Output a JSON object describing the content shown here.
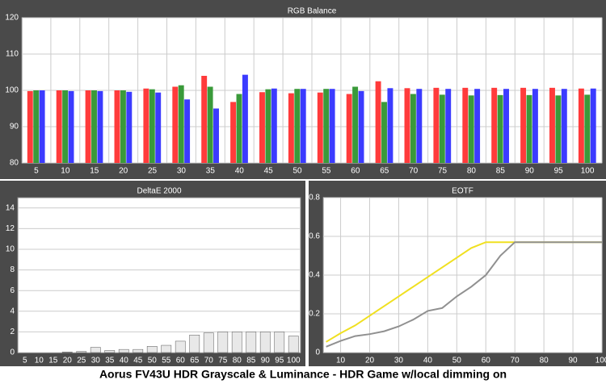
{
  "title": "Aorus FV43U HDR Grayscale & Luminance - HDR Game w/local dimming on",
  "chart_data": [
    {
      "type": "bar",
      "title": "RGB Balance",
      "categories": [
        "5",
        "10",
        "15",
        "20",
        "25",
        "30",
        "35",
        "40",
        "45",
        "50",
        "55",
        "60",
        "65",
        "70",
        "75",
        "80",
        "85",
        "90",
        "95",
        "100"
      ],
      "series": [
        {
          "color": "#ff3b3b",
          "values": [
            99.8,
            100,
            100,
            100,
            100.5,
            101,
            104,
            96.8,
            99.5,
            99.2,
            99.4,
            99,
            102.5,
            100.6,
            100.7,
            100.7,
            100.7,
            100.7,
            100.7,
            100.5
          ]
        },
        {
          "color": "#3a9a3a",
          "values": [
            100,
            100,
            100,
            100,
            100.3,
            101.4,
            101,
            99,
            100.3,
            100.4,
            100.4,
            101,
            96.8,
            99,
            98.8,
            98.6,
            98.7,
            98.7,
            98.6,
            98.8
          ]
        },
        {
          "color": "#3b3bff",
          "values": [
            100,
            99.8,
            99.8,
            99.6,
            99.4,
            97.5,
            95,
            104.3,
            100.5,
            100.4,
            100.4,
            99.8,
            100.6,
            100.4,
            100.4,
            100.4,
            100.4,
            100.4,
            100.4,
            100.5
          ]
        }
      ],
      "ylim": [
        80,
        120
      ],
      "yticks": [
        80,
        90,
        100,
        110,
        120
      ],
      "grid": true
    },
    {
      "type": "bar",
      "title": "DeltaE 2000",
      "categories": [
        "5",
        "10",
        "15",
        "20",
        "25",
        "30",
        "35",
        "40",
        "45",
        "50",
        "55",
        "60",
        "65",
        "70",
        "75",
        "80",
        "85",
        "90",
        "95",
        "100"
      ],
      "values": [
        0,
        0,
        0,
        0.05,
        0.1,
        0.5,
        0.2,
        0.3,
        0.3,
        0.6,
        0.7,
        1.1,
        1.7,
        1.9,
        2.0,
        2.0,
        2.0,
        2.0,
        2.0,
        1.6
      ],
      "color": "#e8e8e8",
      "ylim": [
        0,
        15
      ],
      "yticks": [
        0,
        2,
        4,
        6,
        8,
        10,
        12,
        14
      ],
      "grid": true
    },
    {
      "type": "line",
      "title": "EOTF",
      "x": [
        5,
        10,
        15,
        20,
        25,
        30,
        35,
        40,
        45,
        50,
        55,
        60,
        65,
        70,
        75,
        80,
        85,
        90,
        95,
        100
      ],
      "series": [
        {
          "color": "#f0e020",
          "values": [
            0.055,
            0.1,
            0.14,
            0.19,
            0.24,
            0.29,
            0.34,
            0.39,
            0.44,
            0.49,
            0.54,
            0.57,
            0.57,
            0.57,
            0.57,
            0.57,
            0.57,
            0.57,
            0.57,
            0.57
          ]
        },
        {
          "color": "#909090",
          "values": [
            0.03,
            0.06,
            0.085,
            0.095,
            0.11,
            0.135,
            0.17,
            0.215,
            0.23,
            0.29,
            0.34,
            0.4,
            0.5,
            0.57,
            0.57,
            0.57,
            0.57,
            0.57,
            0.57,
            0.57
          ]
        }
      ],
      "xlim": [
        4,
        100
      ],
      "xticks": [
        10,
        20,
        30,
        40,
        50,
        60,
        70,
        80,
        90,
        100
      ],
      "ylim": [
        0,
        0.8
      ],
      "yticks": [
        0,
        0.2,
        0.4,
        0.6,
        0.8
      ],
      "grid": true
    }
  ]
}
